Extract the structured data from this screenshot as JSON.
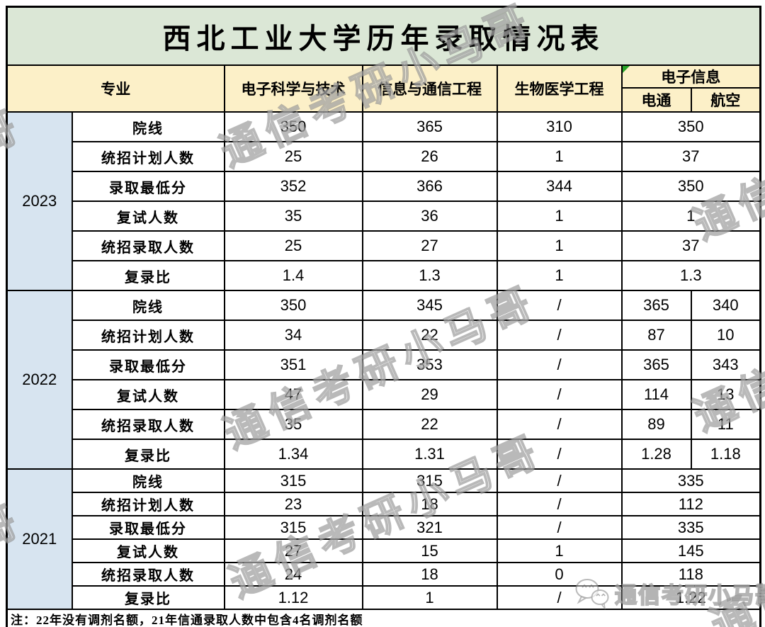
{
  "chart_data": {
    "type": "table",
    "title": "西北工业大学历年录取情况表",
    "header": {
      "major": "专业",
      "col_electronic_science": "电子科学与技术",
      "col_info_comm": "信息与通信工程",
      "col_biomedical": "生物医学工程",
      "col_einfo": "电子信息",
      "sub_diantong": "电通",
      "sub_hangkong": "航空"
    },
    "row_labels": [
      "院线",
      "统招计划人数",
      "录取最低分",
      "复试人数",
      "统招录取人数",
      "复录比"
    ],
    "years": [
      {
        "year": "2023",
        "rows": [
          {
            "label": "院线",
            "cells": [
              {
                "v": "350"
              },
              {
                "v": "365"
              },
              {
                "v": "310"
              },
              {
                "v": "350",
                "span": 2
              }
            ]
          },
          {
            "label": "统招计划人数",
            "cells": [
              {
                "v": "25"
              },
              {
                "v": "26"
              },
              {
                "v": "1"
              },
              {
                "v": "37",
                "span": 2
              }
            ]
          },
          {
            "label": "录取最低分",
            "cells": [
              {
                "v": "352"
              },
              {
                "v": "366"
              },
              {
                "v": "344"
              },
              {
                "v": "350",
                "span": 2
              }
            ]
          },
          {
            "label": "复试人数",
            "cells": [
              {
                "v": "35"
              },
              {
                "v": "36"
              },
              {
                "v": "1"
              },
              {
                "v": "1",
                "span": 2
              }
            ]
          },
          {
            "label": "统招录取人数",
            "cells": [
              {
                "v": "25"
              },
              {
                "v": "27"
              },
              {
                "v": "1"
              },
              {
                "v": "37",
                "span": 2
              }
            ]
          },
          {
            "label": "复录比",
            "cells": [
              {
                "v": "1.4"
              },
              {
                "v": "1.3"
              },
              {
                "v": "1"
              },
              {
                "v": "1.3",
                "span": 2
              }
            ]
          }
        ]
      },
      {
        "year": "2022",
        "rows": [
          {
            "label": "院线",
            "cells": [
              {
                "v": "350"
              },
              {
                "v": "345"
              },
              {
                "v": "/"
              },
              {
                "v": "365"
              },
              {
                "v": "340"
              }
            ]
          },
          {
            "label": "统招计划人数",
            "cells": [
              {
                "v": "34"
              },
              {
                "v": "22"
              },
              {
                "v": "/"
              },
              {
                "v": "87"
              },
              {
                "v": "10"
              }
            ]
          },
          {
            "label": "录取最低分",
            "cells": [
              {
                "v": "351"
              },
              {
                "v": "353"
              },
              {
                "v": "/"
              },
              {
                "v": "365"
              },
              {
                "v": "343"
              }
            ]
          },
          {
            "label": "复试人数",
            "cells": [
              {
                "v": "47"
              },
              {
                "v": "29"
              },
              {
                "v": "/"
              },
              {
                "v": "114"
              },
              {
                "v": "13"
              }
            ]
          },
          {
            "label": "统招录取人数",
            "cells": [
              {
                "v": "35"
              },
              {
                "v": "22"
              },
              {
                "v": "/"
              },
              {
                "v": "89"
              },
              {
                "v": "11"
              }
            ]
          },
          {
            "label": "复录比",
            "cells": [
              {
                "v": "1.34"
              },
              {
                "v": "1.31"
              },
              {
                "v": "/"
              },
              {
                "v": "1.28"
              },
              {
                "v": "1.18"
              }
            ]
          }
        ]
      },
      {
        "year": "2021",
        "rows": [
          {
            "label": "院线",
            "cells": [
              {
                "v": "315"
              },
              {
                "v": "315"
              },
              {
                "v": "/"
              },
              {
                "v": "335",
                "span": 2
              }
            ]
          },
          {
            "label": "统招计划人数",
            "cells": [
              {
                "v": "23"
              },
              {
                "v": "18"
              },
              {
                "v": "/"
              },
              {
                "v": "112",
                "span": 2
              }
            ]
          },
          {
            "label": "录取最低分",
            "cells": [
              {
                "v": "315"
              },
              {
                "v": "321"
              },
              {
                "v": "/"
              },
              {
                "v": "335",
                "span": 2
              }
            ]
          },
          {
            "label": "复试人数",
            "cells": [
              {
                "v": "27"
              },
              {
                "v": "15"
              },
              {
                "v": "1"
              },
              {
                "v": "145",
                "span": 2
              }
            ]
          },
          {
            "label": "统招录取人数",
            "cells": [
              {
                "v": "24"
              },
              {
                "v": "18"
              },
              {
                "v": "0"
              },
              {
                "v": "118",
                "span": 2
              }
            ]
          },
          {
            "label": "复录比",
            "cells": [
              {
                "v": "1.12"
              },
              {
                "v": "1"
              },
              {
                "v": "/"
              },
              {
                "v": "1.22",
                "span": 2
              }
            ]
          }
        ]
      }
    ],
    "note": "注：22年没有调剂名额，21年信通录取人数中包含4名调剂名额"
  },
  "watermark": {
    "text": "通信考研小马哥",
    "partial_left_top": "马哥",
    "partial_left_mid": "马哥",
    "partial_right_top": "通信",
    "partial_right_mid": "通信",
    "partial_right_bottom": "通信",
    "logo_text": "通信考研小马哥"
  },
  "colors": {
    "title_bg": "#dbe7d6",
    "header_bg": "#fcf0c8",
    "year_bg": "#d7e4f0",
    "border": "#000000",
    "comment_triangle": "#28a428",
    "watermark_gray": "#808080"
  }
}
